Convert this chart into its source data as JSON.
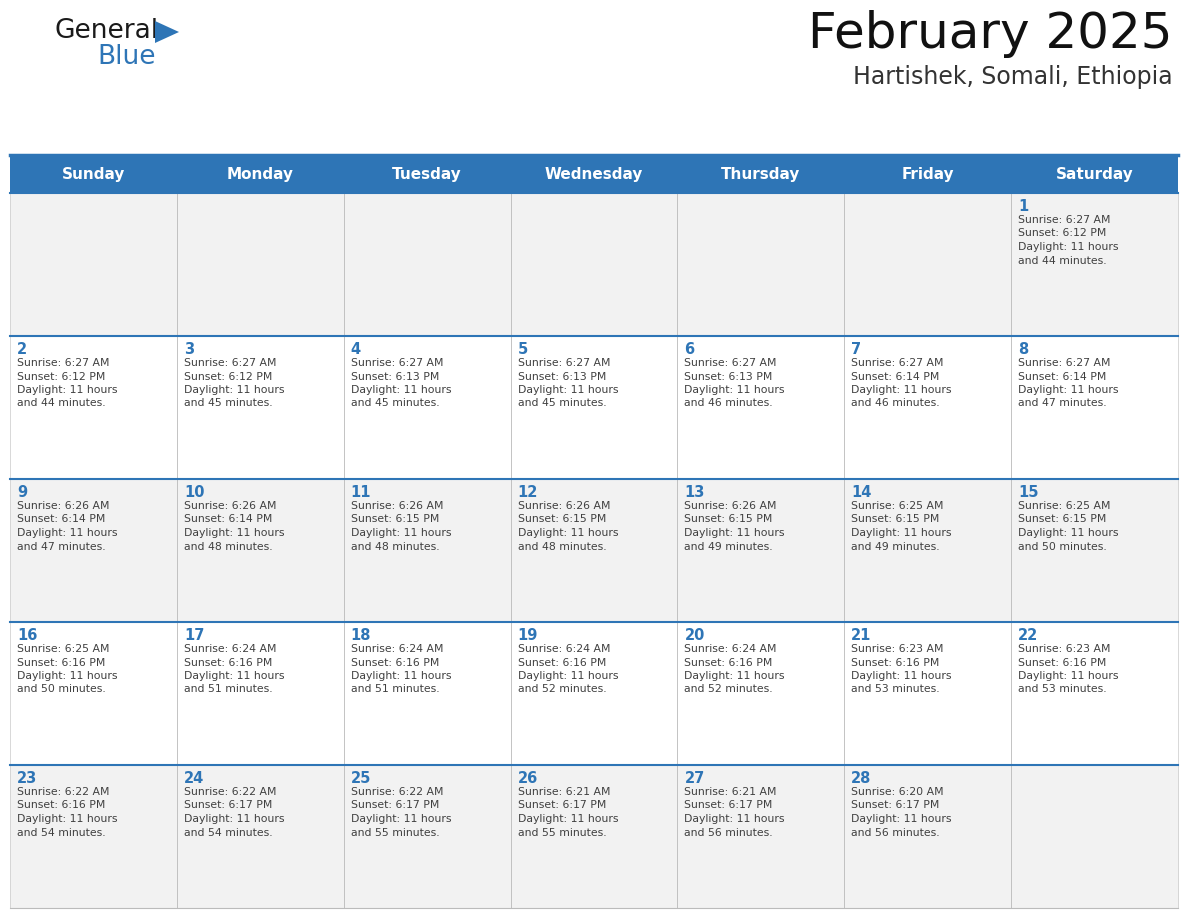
{
  "title": "February 2025",
  "subtitle": "Hartishek, Somali, Ethiopia",
  "header_bg": "#2E75B6",
  "header_text_color": "#FFFFFF",
  "cell_bg_gray": "#F2F2F2",
  "cell_bg_white": "#FFFFFF",
  "day_number_color": "#2E75B6",
  "text_color": "#404040",
  "border_color": "#BBBBBB",
  "week_separator_color": "#2E75B6",
  "days_of_week": [
    "Sunday",
    "Monday",
    "Tuesday",
    "Wednesday",
    "Thursday",
    "Friday",
    "Saturday"
  ],
  "weeks": [
    [
      {
        "day": 0,
        "sunrise": "",
        "sunset": "",
        "daylight": ""
      },
      {
        "day": 0,
        "sunrise": "",
        "sunset": "",
        "daylight": ""
      },
      {
        "day": 0,
        "sunrise": "",
        "sunset": "",
        "daylight": ""
      },
      {
        "day": 0,
        "sunrise": "",
        "sunset": "",
        "daylight": ""
      },
      {
        "day": 0,
        "sunrise": "",
        "sunset": "",
        "daylight": ""
      },
      {
        "day": 0,
        "sunrise": "",
        "sunset": "",
        "daylight": ""
      },
      {
        "day": 1,
        "sunrise": "6:27 AM",
        "sunset": "6:12 PM",
        "daylight": "11 hours and 44 minutes."
      }
    ],
    [
      {
        "day": 2,
        "sunrise": "6:27 AM",
        "sunset": "6:12 PM",
        "daylight": "11 hours and 44 minutes."
      },
      {
        "day": 3,
        "sunrise": "6:27 AM",
        "sunset": "6:12 PM",
        "daylight": "11 hours and 45 minutes."
      },
      {
        "day": 4,
        "sunrise": "6:27 AM",
        "sunset": "6:13 PM",
        "daylight": "11 hours and 45 minutes."
      },
      {
        "day": 5,
        "sunrise": "6:27 AM",
        "sunset": "6:13 PM",
        "daylight": "11 hours and 45 minutes."
      },
      {
        "day": 6,
        "sunrise": "6:27 AM",
        "sunset": "6:13 PM",
        "daylight": "11 hours and 46 minutes."
      },
      {
        "day": 7,
        "sunrise": "6:27 AM",
        "sunset": "6:14 PM",
        "daylight": "11 hours and 46 minutes."
      },
      {
        "day": 8,
        "sunrise": "6:27 AM",
        "sunset": "6:14 PM",
        "daylight": "11 hours and 47 minutes."
      }
    ],
    [
      {
        "day": 9,
        "sunrise": "6:26 AM",
        "sunset": "6:14 PM",
        "daylight": "11 hours and 47 minutes."
      },
      {
        "day": 10,
        "sunrise": "6:26 AM",
        "sunset": "6:14 PM",
        "daylight": "11 hours and 48 minutes."
      },
      {
        "day": 11,
        "sunrise": "6:26 AM",
        "sunset": "6:15 PM",
        "daylight": "11 hours and 48 minutes."
      },
      {
        "day": 12,
        "sunrise": "6:26 AM",
        "sunset": "6:15 PM",
        "daylight": "11 hours and 48 minutes."
      },
      {
        "day": 13,
        "sunrise": "6:26 AM",
        "sunset": "6:15 PM",
        "daylight": "11 hours and 49 minutes."
      },
      {
        "day": 14,
        "sunrise": "6:25 AM",
        "sunset": "6:15 PM",
        "daylight": "11 hours and 49 minutes."
      },
      {
        "day": 15,
        "sunrise": "6:25 AM",
        "sunset": "6:15 PM",
        "daylight": "11 hours and 50 minutes."
      }
    ],
    [
      {
        "day": 16,
        "sunrise": "6:25 AM",
        "sunset": "6:16 PM",
        "daylight": "11 hours and 50 minutes."
      },
      {
        "day": 17,
        "sunrise": "6:24 AM",
        "sunset": "6:16 PM",
        "daylight": "11 hours and 51 minutes."
      },
      {
        "day": 18,
        "sunrise": "6:24 AM",
        "sunset": "6:16 PM",
        "daylight": "11 hours and 51 minutes."
      },
      {
        "day": 19,
        "sunrise": "6:24 AM",
        "sunset": "6:16 PM",
        "daylight": "11 hours and 52 minutes."
      },
      {
        "day": 20,
        "sunrise": "6:24 AM",
        "sunset": "6:16 PM",
        "daylight": "11 hours and 52 minutes."
      },
      {
        "day": 21,
        "sunrise": "6:23 AM",
        "sunset": "6:16 PM",
        "daylight": "11 hours and 53 minutes."
      },
      {
        "day": 22,
        "sunrise": "6:23 AM",
        "sunset": "6:16 PM",
        "daylight": "11 hours and 53 minutes."
      }
    ],
    [
      {
        "day": 23,
        "sunrise": "6:22 AM",
        "sunset": "6:16 PM",
        "daylight": "11 hours and 54 minutes."
      },
      {
        "day": 24,
        "sunrise": "6:22 AM",
        "sunset": "6:17 PM",
        "daylight": "11 hours and 54 minutes."
      },
      {
        "day": 25,
        "sunrise": "6:22 AM",
        "sunset": "6:17 PM",
        "daylight": "11 hours and 55 minutes."
      },
      {
        "day": 26,
        "sunrise": "6:21 AM",
        "sunset": "6:17 PM",
        "daylight": "11 hours and 55 minutes."
      },
      {
        "day": 27,
        "sunrise": "6:21 AM",
        "sunset": "6:17 PM",
        "daylight": "11 hours and 56 minutes."
      },
      {
        "day": 28,
        "sunrise": "6:20 AM",
        "sunset": "6:17 PM",
        "daylight": "11 hours and 56 minutes."
      },
      {
        "day": 0,
        "sunrise": "",
        "sunset": "",
        "daylight": ""
      }
    ]
  ]
}
